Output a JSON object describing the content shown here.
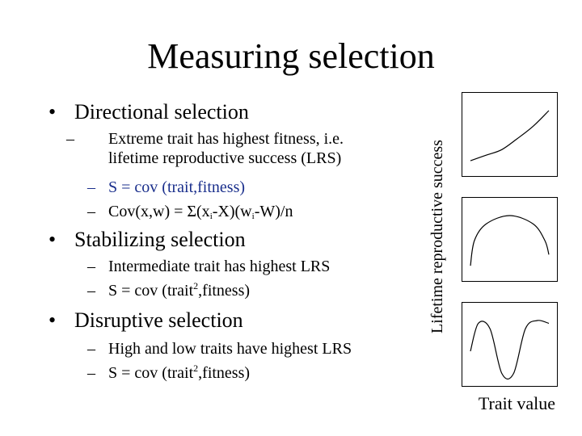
{
  "slide": {
    "title": "Measuring selection",
    "bullets": [
      {
        "text": "Directional selection",
        "sub": [
          {
            "line1": "Extreme trait has highest fitness, i.e.",
            "line2": "lifetime reproductive success (LRS)"
          },
          {
            "text": "S = cov (trait,fitness)",
            "color": "#1a2f8c"
          },
          {
            "parts": [
              "Cov(x,w) = Σ(x",
              "i",
              "-X)(w",
              "i",
              "-W)/n"
            ]
          }
        ]
      },
      {
        "text": "Stabilizing selection",
        "sub": [
          {
            "text": "Intermediate trait has highest LRS"
          },
          {
            "parts": [
              "S = cov (trait",
              "2",
              ",fitness)"
            ]
          }
        ]
      },
      {
        "text": "Disruptive selection",
        "sub": [
          {
            "text": "High and low traits have highest LRS"
          },
          {
            "parts": [
              "S = cov (trait",
              "2",
              ",fitness)"
            ]
          }
        ]
      }
    ],
    "bullet_glyph": "•",
    "dash_glyph": "–"
  },
  "figure": {
    "y_axis_label": "Lifetime reproductive success",
    "x_axis_label": "Trait value",
    "panels": [
      {
        "kind": "directional",
        "curve": [
          [
            0.0,
            0.1
          ],
          [
            0.2,
            0.2
          ],
          [
            0.4,
            0.3
          ],
          [
            0.6,
            0.5
          ],
          [
            0.8,
            0.72
          ],
          [
            1.0,
            1.0
          ]
        ]
      },
      {
        "kind": "stabilizing",
        "curve": [
          [
            0.0,
            0.1
          ],
          [
            0.05,
            0.55
          ],
          [
            0.2,
            0.85
          ],
          [
            0.5,
            1.0
          ],
          [
            0.8,
            0.85
          ],
          [
            0.95,
            0.55
          ],
          [
            1.0,
            0.3
          ]
        ]
      },
      {
        "kind": "disruptive",
        "curve": [
          [
            0.0,
            0.45
          ],
          [
            0.1,
            0.95
          ],
          [
            0.25,
            0.85
          ],
          [
            0.4,
            0.05
          ],
          [
            0.55,
            0.05
          ],
          [
            0.7,
            0.85
          ],
          [
            0.85,
            1.0
          ],
          [
            1.0,
            0.95
          ]
        ]
      }
    ]
  }
}
